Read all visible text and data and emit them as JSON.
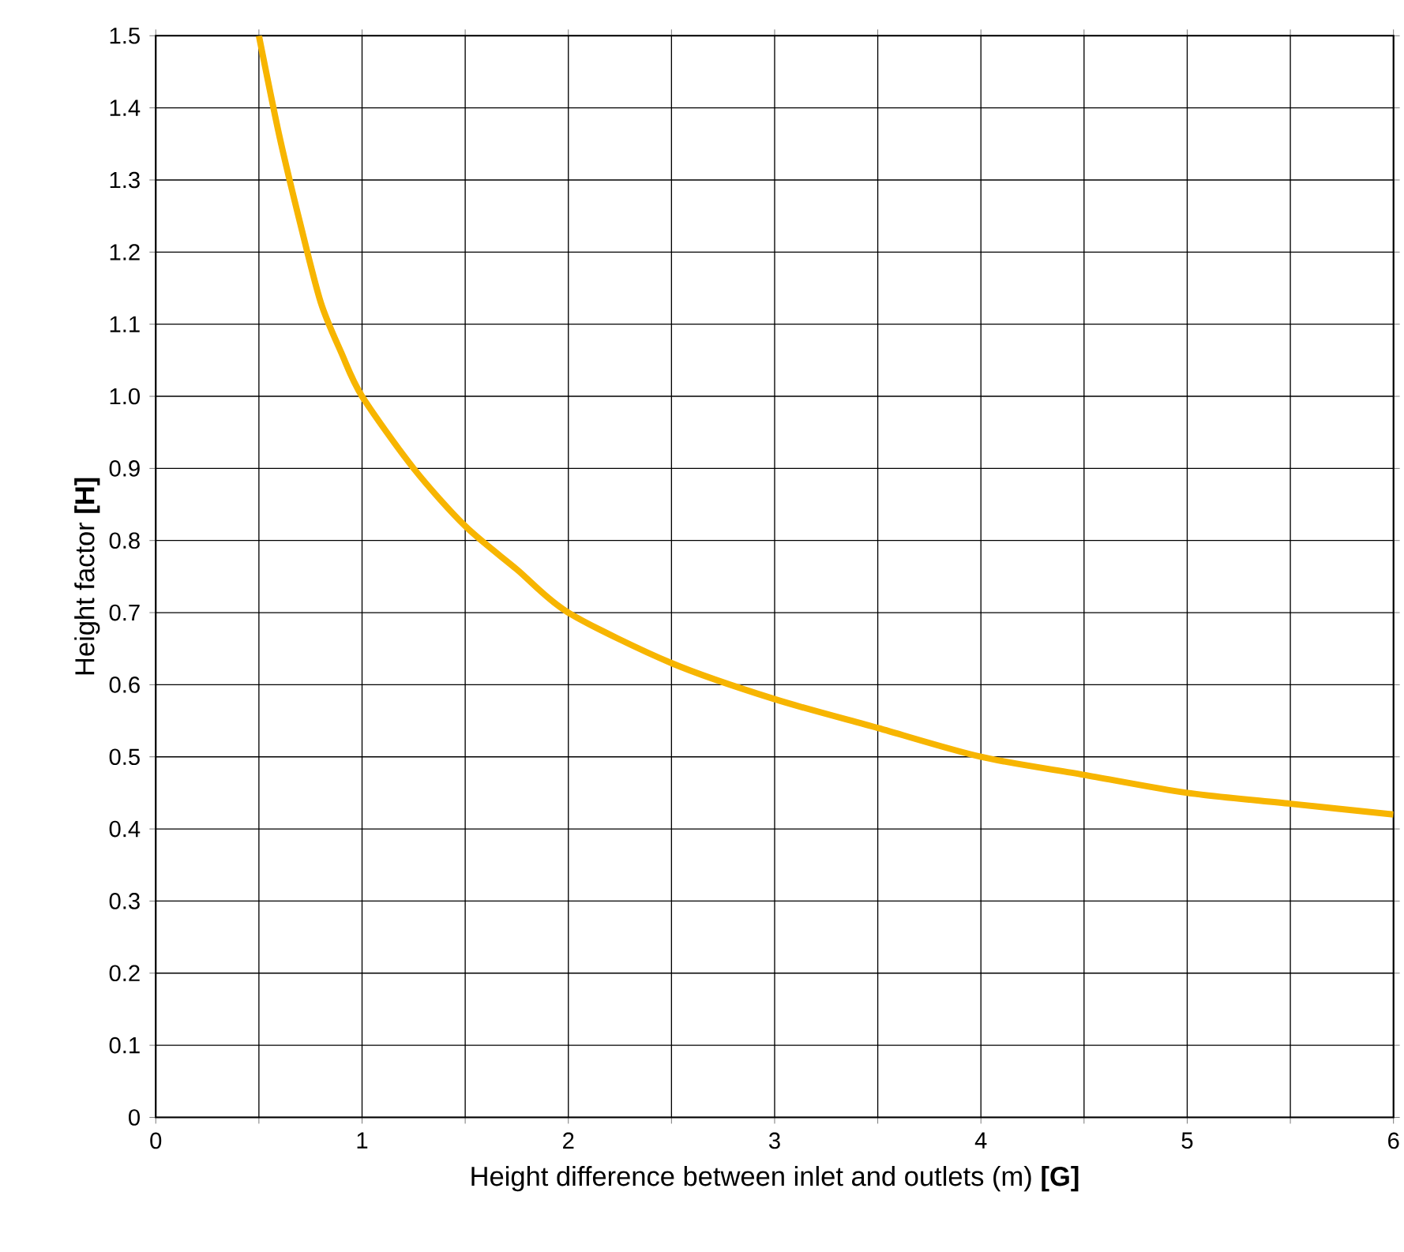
{
  "chart_data": {
    "type": "line",
    "xlabel": "Height difference between inlet and outlets (m) **[G]**",
    "ylabel": "Height factor **[H]**",
    "x": [
      0.5,
      0.6,
      0.7,
      0.8,
      0.9,
      1,
      1.25,
      1.5,
      1.75,
      2,
      2.5,
      3,
      3.5,
      4,
      4.5,
      5,
      5.5,
      6
    ],
    "series": [
      {
        "color": "#f7b500",
        "values": [
          1.5,
          1.36,
          1.24,
          1.13,
          1.06,
          1.0,
          0.9,
          0.82,
          0.76,
          0.7,
          0.63,
          0.58,
          0.54,
          0.5,
          0.475,
          0.45,
          0.435,
          0.42
        ]
      }
    ],
    "xlim": [
      0,
      6
    ],
    "ylim": [
      0,
      1.5
    ],
    "xticks": [
      0,
      {
        "value": 0.5,
        "label": null
      },
      1,
      {
        "value": 1.5,
        "label": null
      },
      2,
      {
        "value": 2.5,
        "label": null
      },
      3,
      {
        "value": 3.5,
        "label": null
      },
      4,
      {
        "value": 4.5,
        "label": null
      },
      5,
      {
        "value": 5.5,
        "label": null
      },
      6
    ],
    "yticks": [
      0,
      0.1,
      0.2,
      0.3,
      0.4,
      0.5,
      0.6,
      0.7,
      0.8,
      0.9,
      {
        "value": 1,
        "label": "1.0"
      },
      1.1,
      1.2,
      1.3,
      1.4,
      1.5
    ],
    "grid": true,
    "marker": "none",
    "line_style": "solid"
  }
}
